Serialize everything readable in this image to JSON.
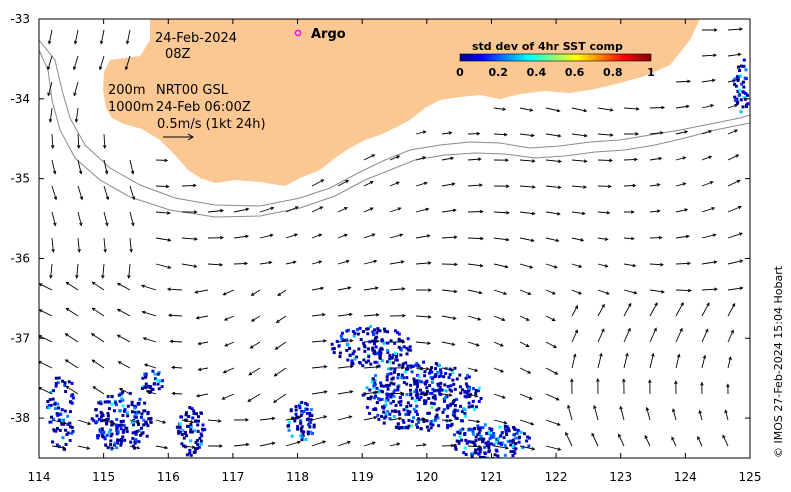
{
  "map": {
    "date_line1": "24-Feb-2024",
    "date_line2": "08Z",
    "legend_isobath_200": "200m",
    "legend_isobath_1000": "1000m",
    "product_line1": "NRT00 GSL",
    "product_line2": "24-Feb 06:00Z",
    "velocity_scale": "0.5m/s (1kt 24h)",
    "argo_label": "Argo",
    "credit": "© IMOS 27-Feb-2024 15:04 Hobart",
    "x_ticks": [
      "114",
      "115",
      "116",
      "117",
      "118",
      "119",
      "120",
      "121",
      "122",
      "123",
      "124",
      "125"
    ],
    "y_ticks": [
      "-33",
      "-34",
      "-35",
      "-36",
      "-37",
      "-38"
    ],
    "lon_range": [
      114,
      125
    ],
    "lat_range": [
      -38.5,
      -33
    ],
    "colors": {
      "land": "#fbc893",
      "argo": "#ff00ff",
      "arrow": "#000000",
      "isobath": "#8c8c8c"
    }
  },
  "colorbar": {
    "title": "std dev of 4hr SST comp",
    "ticks": [
      "0",
      "0.2",
      "0.4",
      "0.6",
      "0.8",
      "1"
    ],
    "range": [
      0,
      1
    ],
    "colormap": "jet"
  }
}
